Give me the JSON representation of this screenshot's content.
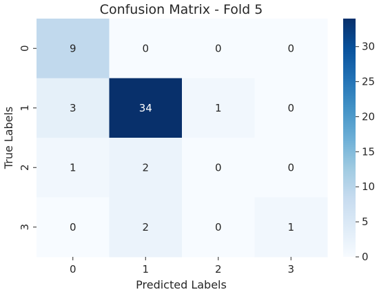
{
  "chart_data": {
    "type": "heatmap",
    "title": "Confusion Matrix - Fold 5",
    "xlabel": "Predicted Labels",
    "ylabel": "True Labels",
    "x_categories": [
      "0",
      "1",
      "2",
      "3"
    ],
    "y_categories": [
      "0",
      "1",
      "2",
      "3"
    ],
    "values": [
      [
        9,
        0,
        0,
        0
      ],
      [
        3,
        34,
        1,
        0
      ],
      [
        1,
        2,
        0,
        0
      ],
      [
        0,
        2,
        0,
        1
      ]
    ],
    "colormap": "Blues",
    "colorbar": {
      "range": [
        0,
        34
      ],
      "ticks": [
        0,
        5,
        10,
        15,
        20,
        25,
        30
      ]
    }
  }
}
